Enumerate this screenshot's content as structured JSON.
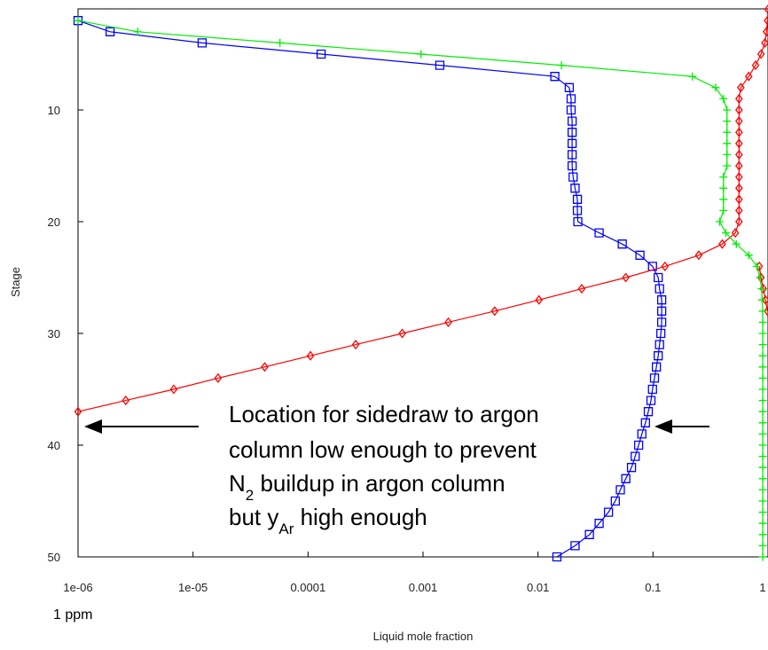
{
  "chart_data": {
    "type": "line",
    "log_x": true,
    "xlabel": "Liquid mole fraction",
    "ylabel": "Stage",
    "x_note": "1 ppm",
    "xlim": [
      1e-06,
      1
    ],
    "ylim": [
      50,
      1
    ],
    "xticks": [
      {
        "value": 1e-06,
        "label": "1e-06"
      },
      {
        "value": 1e-05,
        "label": "1e-05"
      },
      0.0001,
      0.001,
      0.01,
      0.1,
      1
    ],
    "yticks": [
      10,
      20,
      30,
      40,
      50
    ],
    "series": [
      {
        "color": "#0000ff",
        "marker": "square",
        "x": [
          1e-06,
          1.9e-06,
          1.2e-05,
          0.00013,
          0.0014,
          0.014,
          0.0187,
          0.0194,
          0.0194,
          0.0198,
          0.0198,
          0.0198,
          0.0198,
          0.0198,
          0.0202,
          0.021,
          0.022,
          0.022,
          0.0222,
          0.034,
          0.054,
          0.077,
          0.099,
          0.111,
          0.114,
          0.119,
          0.119,
          0.119,
          0.117,
          0.114,
          0.111,
          0.107,
          0.103,
          0.099,
          0.096,
          0.091,
          0.086,
          0.08,
          0.075,
          0.07,
          0.065,
          0.058,
          0.052,
          0.047,
          0.041,
          0.034,
          0.028,
          0.021,
          0.0146
        ],
        "values": [
          2,
          3,
          4,
          5,
          6,
          7,
          8,
          9,
          10,
          11,
          12,
          13,
          14,
          15,
          16,
          17,
          18,
          19,
          20,
          21,
          22,
          23,
          24,
          25,
          26,
          27,
          28,
          29,
          30,
          31,
          32,
          33,
          34,
          35,
          36,
          37,
          38,
          39,
          40,
          41,
          42,
          43,
          44,
          45,
          46,
          47,
          48,
          49,
          50
        ]
      },
      {
        "color": "#ff0000",
        "marker": "diamond",
        "x": [
          1,
          0.99,
          0.97,
          0.94,
          0.87,
          0.78,
          0.68,
          0.58,
          0.56,
          0.56,
          0.56,
          0.56,
          0.56,
          0.56,
          0.56,
          0.56,
          0.56,
          0.56,
          0.56,
          0.56,
          0.52,
          0.4,
          0.25,
          0.127,
          0.058,
          0.024,
          0.0102,
          0.0042,
          0.00166,
          0.00066,
          0.00026,
          0.000105,
          4.2e-05,
          1.65e-05,
          6.8e-06,
          2.6e-06,
          1e-06
        ],
        "values": [
          1,
          2,
          3,
          4,
          5,
          6,
          7,
          8,
          9,
          10,
          11,
          12,
          13,
          14,
          15,
          16,
          17,
          18,
          19,
          20,
          21,
          22,
          23,
          24,
          25,
          26,
          27,
          28,
          29,
          30,
          31,
          32,
          33,
          34,
          35,
          36,
          37
        ]
      },
      {
        "color": "#ff0000",
        "marker": "diamond",
        "x": [
          0.84,
          0.87,
          0.91,
          0.95,
          0.99
        ],
        "values": [
          24,
          25,
          26,
          27,
          28
        ]
      },
      {
        "color": "#00ee00",
        "marker": "plus",
        "x": [
          1e-06,
          3.3e-06,
          5.7e-05,
          0.00096,
          0.016,
          0.22,
          0.35,
          0.41,
          0.44,
          0.44,
          0.44,
          0.44,
          0.44,
          0.44,
          0.41,
          0.41,
          0.41,
          0.41,
          0.38,
          0.43,
          0.53,
          0.68,
          0.8,
          0.85,
          0.88,
          0.89,
          0.9,
          0.9,
          0.9,
          0.9,
          0.9,
          0.9,
          0.9,
          0.9,
          0.9,
          0.9,
          0.9,
          0.9,
          0.9,
          0.9,
          0.9,
          0.9,
          0.9,
          0.9,
          0.9,
          0.9,
          0.9,
          0.9,
          0.9
        ],
        "values": [
          2,
          3,
          4,
          5,
          6,
          7,
          8,
          9,
          10,
          11,
          12,
          13,
          14,
          15,
          16,
          17,
          18,
          19,
          20,
          21,
          22,
          23,
          24,
          25,
          26,
          27,
          28,
          29,
          30,
          31,
          32,
          33,
          34,
          35,
          36,
          37,
          38,
          39,
          40,
          41,
          42,
          43,
          44,
          45,
          46,
          47,
          48,
          49,
          50
        ]
      }
    ],
    "annotation": [
      [
        {
          "text": "Location for sidedraw to argon"
        }
      ],
      [
        {
          "text": "column low enough to prevent"
        }
      ],
      [
        {
          "text": "N"
        },
        {
          "text": "2",
          "sub": true
        },
        {
          "text": " buildup in argon column"
        }
      ],
      [
        {
          "text": "but y"
        },
        {
          "text": "Ar",
          "sub": true
        },
        {
          "text": " high enough"
        }
      ]
    ]
  }
}
